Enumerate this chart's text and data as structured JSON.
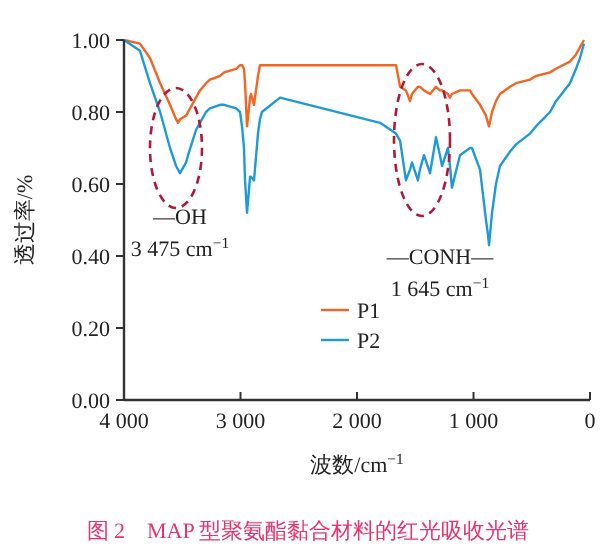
{
  "chart_data": {
    "type": "line",
    "title": "图 2　MAP 型聚氨酯黏合材料的红光吸收光谱",
    "xlabel": "波数/cm$^{−1}$",
    "ylabel": "透过率/%",
    "x": [
      4000,
      3863,
      3777,
      3690,
      3605,
      3553,
      3536,
      3519,
      3467,
      3450,
      3382,
      3348,
      3296,
      3262,
      3176,
      3140,
      3038,
      3004,
      2987,
      2970,
      2961,
      2944,
      2918,
      2910,
      2884,
      2850,
      2833,
      2816,
      2661,
      1802,
      1665,
      1630,
      1580,
      1545,
      1528,
      1477,
      1460,
      1425,
      1373,
      1322,
      1288,
      1270,
      1219,
      1202,
      1185,
      1116,
      1030,
      1013,
      944,
      893,
      876,
      867,
      841,
      807,
      773,
      687,
      635,
      515,
      464,
      343,
      292,
      172,
      120,
      86,
      52
    ],
    "series": [
      {
        "name": "P1",
        "color": "#f26522",
        "values": [
          1.0,
          0.99,
          0.95,
          0.88,
          0.82,
          0.78,
          0.77,
          0.78,
          0.79,
          0.8,
          0.84,
          0.86,
          0.88,
          0.89,
          0.9,
          0.91,
          0.92,
          0.93,
          0.93,
          0.92,
          0.88,
          0.76,
          0.84,
          0.85,
          0.82,
          0.9,
          0.93,
          0.93,
          0.93,
          0.93,
          0.93,
          0.87,
          0.86,
          0.83,
          0.85,
          0.87,
          0.87,
          0.86,
          0.85,
          0.87,
          0.86,
          0.86,
          0.85,
          0.84,
          0.85,
          0.86,
          0.86,
          0.85,
          0.82,
          0.79,
          0.77,
          0.76,
          0.8,
          0.83,
          0.85,
          0.87,
          0.88,
          0.89,
          0.9,
          0.91,
          0.92,
          0.94,
          0.96,
          0.98,
          1.0
        ]
      },
      {
        "name": "P2",
        "color": "#1e9ad6",
        "values": [
          1.0,
          0.97,
          0.88,
          0.8,
          0.7,
          0.65,
          0.64,
          0.63,
          0.66,
          0.68,
          0.75,
          0.77,
          0.8,
          0.81,
          0.82,
          0.82,
          0.81,
          0.8,
          0.76,
          0.7,
          0.61,
          0.52,
          0.62,
          0.62,
          0.61,
          0.74,
          0.78,
          0.8,
          0.84,
          0.77,
          0.74,
          0.72,
          0.61,
          0.64,
          0.66,
          0.61,
          0.64,
          0.68,
          0.63,
          0.73,
          0.68,
          0.65,
          0.7,
          0.65,
          0.59,
          0.68,
          0.7,
          0.7,
          0.64,
          0.5,
          0.46,
          0.43,
          0.52,
          0.6,
          0.65,
          0.69,
          0.71,
          0.74,
          0.76,
          0.8,
          0.83,
          0.88,
          0.92,
          0.95,
          0.99
        ]
      }
    ],
    "xlim": [
      4000,
      0
    ],
    "xticks": [
      {
        "value": 4000,
        "label": "4 000"
      },
      {
        "value": 3000,
        "label": "3 000"
      },
      {
        "value": 2000,
        "label": "2 000"
      },
      {
        "value": 1000,
        "label": "1 000"
      },
      0
    ],
    "ylim": [
      0,
      1
    ],
    "yticks": [
      {
        "value": 0,
        "label": "0.00"
      },
      {
        "value": 0.2,
        "label": "0.20"
      },
      {
        "value": 0.4,
        "label": "0.40"
      },
      {
        "value": 0.6,
        "label": "0.60"
      },
      {
        "value": 0.8,
        "label": "0.80"
      },
      {
        "value": 1,
        "label": "1.00"
      }
    ],
    "annotations": [
      "—OH\n3 475 cm$^{−1}$",
      "—CONH—\n1 645 cm$^{−1}$"
    ],
    "legend": "bottom",
    "grid": false
  }
}
